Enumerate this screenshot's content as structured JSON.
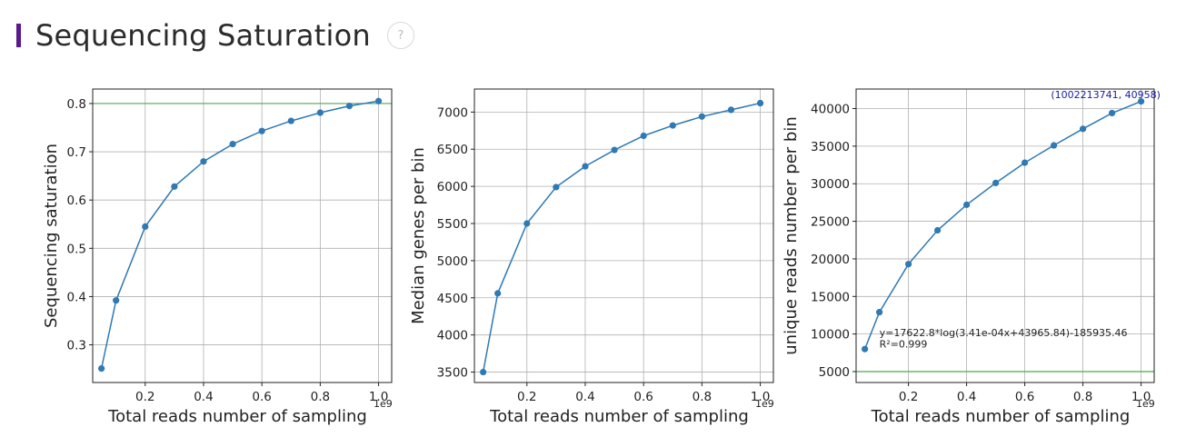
{
  "page": {
    "title": "Sequencing Saturation",
    "help_label": "?"
  },
  "colors": {
    "series": "#2f79b5",
    "ref_line": "#4ea84e",
    "grid": "#b0b0b0",
    "accent": "#5b1a8c",
    "annotation": "#1a1aa6"
  },
  "chart_data": [
    {
      "type": "line",
      "x": [
        0.05,
        0.1,
        0.2,
        0.3,
        0.4,
        0.5,
        0.6,
        0.7,
        0.8,
        0.9,
        1.0
      ],
      "series": [
        {
          "values": [
            0.251,
            0.392,
            0.545,
            0.628,
            0.68,
            0.716,
            0.743,
            0.764,
            0.781,
            0.795,
            0.805
          ]
        }
      ],
      "xlabel": "Total reads number of sampling",
      "ylabel": "Sequencing saturation",
      "x_exponent_label": "1e9",
      "xlim": [
        0.02,
        1.045
      ],
      "ylim": [
        0.222,
        0.83
      ],
      "xticks": [
        0.2,
        0.4,
        0.6,
        0.8,
        1.0
      ],
      "xtick_labels": [
        "0.2",
        "0.4",
        "0.6",
        "0.8",
        "1.0"
      ],
      "yticks": [
        0.3,
        0.4,
        0.5,
        0.6,
        0.7,
        0.8
      ],
      "ytick_labels": [
        "0.3",
        "0.4",
        "0.5",
        "0.6",
        "0.7",
        "0.8"
      ],
      "hline": 0.8,
      "grid": true,
      "annotations": []
    },
    {
      "type": "line",
      "x": [
        0.05,
        0.1,
        0.2,
        0.3,
        0.4,
        0.5,
        0.6,
        0.7,
        0.8,
        0.9,
        1.0
      ],
      "series": [
        {
          "values": [
            3500,
            4560,
            5500,
            5990,
            6270,
            6490,
            6680,
            6820,
            6940,
            7030,
            7120
          ]
        }
      ],
      "xlabel": "Total reads number of sampling",
      "ylabel": "Median genes per bin",
      "x_exponent_label": "1e9",
      "xlim": [
        0.02,
        1.045
      ],
      "ylim": [
        3360,
        7310
      ],
      "xticks": [
        0.2,
        0.4,
        0.6,
        0.8,
        1.0
      ],
      "xtick_labels": [
        "0.2",
        "0.4",
        "0.6",
        "0.8",
        "1.0"
      ],
      "yticks": [
        3500,
        4000,
        4500,
        5000,
        5500,
        6000,
        6500,
        7000
      ],
      "ytick_labels": [
        "3500",
        "4000",
        "4500",
        "5000",
        "5500",
        "6000",
        "6500",
        "7000"
      ],
      "hline": null,
      "grid": true,
      "annotations": []
    },
    {
      "type": "line",
      "x": [
        0.05,
        0.1,
        0.2,
        0.3,
        0.4,
        0.5,
        0.6,
        0.7,
        0.8,
        0.9,
        1.0
      ],
      "series": [
        {
          "values": [
            8000,
            12900,
            19300,
            23800,
            27200,
            30100,
            32800,
            35100,
            37300,
            39400,
            40958
          ]
        }
      ],
      "xlabel": "Total reads number of sampling",
      "ylabel": "unique reads number per bin",
      "x_exponent_label": "1e9",
      "xlim": [
        0.02,
        1.045
      ],
      "ylim": [
        3550,
        42600
      ],
      "xticks": [
        0.2,
        0.4,
        0.6,
        0.8,
        1.0
      ],
      "xtick_labels": [
        "0.2",
        "0.4",
        "0.6",
        "0.8",
        "1.0"
      ],
      "yticks": [
        5000,
        10000,
        15000,
        20000,
        25000,
        30000,
        35000,
        40000
      ],
      "ytick_labels": [
        "5000",
        "10000",
        "15000",
        "20000",
        "25000",
        "30000",
        "35000",
        "40000"
      ],
      "hline": 5000,
      "grid": true,
      "annotations": [
        {
          "text": "(1002213741, 40958)",
          "x": 0.69,
          "y": 41400,
          "kind": "point-label"
        },
        {
          "text": "y=17622.8*log(3.41e-04x+43965.84)-185935.46",
          "x": 0.1,
          "y": 9700,
          "kind": "fit"
        },
        {
          "text": "R²=0.999",
          "x": 0.1,
          "y": 8200,
          "kind": "fit"
        }
      ]
    }
  ]
}
